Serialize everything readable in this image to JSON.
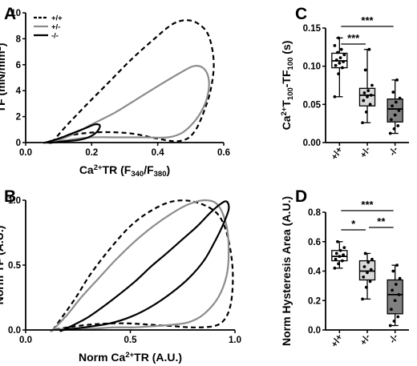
{
  "chart_data": [
    {
      "panel": "A",
      "type": "line",
      "xlabel": "Ca2+TR (F340/F380)",
      "ylabel": "TF (mN/mm2)",
      "xlim": [
        0,
        0.6
      ],
      "ylim": [
        0,
        10
      ],
      "xticks": [
        "0.0",
        "0.2",
        "0.4",
        "0.6"
      ],
      "yticks": [
        "0",
        "2",
        "4",
        "6",
        "8",
        "10"
      ],
      "legend": {
        "placement": "top-left",
        "entries": [
          "+/+",
          "+/-",
          "-/-"
        ]
      },
      "series": [
        {
          "name": "+/+",
          "color": "#000000",
          "dash": "dashed",
          "x": [
            0.08,
            0.12,
            0.18,
            0.25,
            0.32,
            0.39,
            0.45,
            0.5,
            0.54,
            0.56,
            0.57,
            0.56,
            0.54,
            0.52,
            0.5,
            0.48,
            0.45,
            0.4,
            0.32,
            0.24,
            0.17,
            0.11,
            0.08
          ],
          "y": [
            0.0,
            1.2,
            2.8,
            4.6,
            6.4,
            8.0,
            9.2,
            9.4,
            8.8,
            7.8,
            6.0,
            4.0,
            2.4,
            1.2,
            0.5,
            0.2,
            0.1,
            0.3,
            0.7,
            0.8,
            0.7,
            0.4,
            0.0
          ]
        },
        {
          "name": "+/-",
          "color": "#8c8c8c",
          "dash": "solid",
          "x": [
            0.08,
            0.14,
            0.2,
            0.27,
            0.34,
            0.41,
            0.47,
            0.51,
            0.54,
            0.555,
            0.55,
            0.53,
            0.5,
            0.47,
            0.43,
            0.36,
            0.28,
            0.2,
            0.13,
            0.08
          ],
          "y": [
            0.0,
            0.6,
            1.4,
            2.3,
            3.4,
            4.5,
            5.4,
            5.9,
            5.7,
            4.8,
            3.5,
            2.3,
            1.3,
            0.7,
            0.4,
            0.4,
            0.4,
            0.4,
            0.2,
            0.0
          ]
        },
        {
          "name": "-/-",
          "color": "#000000",
          "dash": "solid",
          "x": [
            0.06,
            0.1,
            0.14,
            0.18,
            0.21,
            0.225,
            0.215,
            0.19,
            0.16,
            0.12,
            0.08,
            0.06
          ],
          "y": [
            0.0,
            0.3,
            0.7,
            1.1,
            1.4,
            1.3,
            0.8,
            0.4,
            0.2,
            0.1,
            0.0,
            0.0
          ]
        }
      ]
    },
    {
      "panel": "B",
      "type": "line",
      "xlabel": "Norm Ca2+TR (A.U.)",
      "ylabel": "Norm TF (A.U.)",
      "xlim": [
        0,
        1
      ],
      "ylim": [
        0,
        1
      ],
      "xticks": [
        "0.0",
        "0.5",
        "1.0"
      ],
      "yticks": [
        "0.0",
        "0.5",
        "1.0"
      ],
      "series": [
        {
          "name": "+/+",
          "color": "#000000",
          "dash": "dashed",
          "x": [
            0.13,
            0.17,
            0.24,
            0.31,
            0.4,
            0.5,
            0.6,
            0.7,
            0.8,
            0.9,
            0.95,
            0.98,
            0.99,
            0.98,
            0.95,
            0.9,
            0.8,
            0.7,
            0.6,
            0.5,
            0.4,
            0.3,
            0.2,
            0.13
          ],
          "y": [
            0.0,
            0.09,
            0.25,
            0.43,
            0.62,
            0.8,
            0.92,
            0.99,
            0.99,
            0.92,
            0.8,
            0.6,
            0.4,
            0.2,
            0.08,
            0.03,
            0.02,
            0.03,
            0.04,
            0.05,
            0.05,
            0.04,
            0.02,
            0.0
          ]
        },
        {
          "name": "+/-",
          "color": "#8c8c8c",
          "dash": "solid",
          "x": [
            0.13,
            0.2,
            0.27,
            0.35,
            0.43,
            0.52,
            0.61,
            0.7,
            0.78,
            0.86,
            0.92,
            0.96,
            0.97,
            0.96,
            0.92,
            0.85,
            0.78,
            0.7,
            0.62,
            0.52,
            0.42,
            0.32,
            0.22,
            0.13
          ],
          "y": [
            0.0,
            0.12,
            0.26,
            0.4,
            0.54,
            0.68,
            0.8,
            0.9,
            0.97,
            1.0,
            0.96,
            0.8,
            0.6,
            0.42,
            0.25,
            0.12,
            0.06,
            0.04,
            0.03,
            0.02,
            0.02,
            0.01,
            0.01,
            0.0
          ]
        },
        {
          "name": "-/-",
          "color": "#000000",
          "dash": "solid",
          "x": [
            0.18,
            0.3,
            0.42,
            0.52,
            0.6,
            0.68,
            0.75,
            0.82,
            0.88,
            0.93,
            0.96,
            0.97,
            0.94,
            0.9,
            0.85,
            0.78,
            0.7,
            0.6,
            0.5,
            0.4,
            0.28,
            0.18
          ],
          "y": [
            0.0,
            0.1,
            0.24,
            0.37,
            0.49,
            0.6,
            0.7,
            0.8,
            0.9,
            0.97,
            0.99,
            0.93,
            0.8,
            0.67,
            0.53,
            0.4,
            0.29,
            0.18,
            0.1,
            0.05,
            0.02,
            0.0
          ]
        }
      ]
    },
    {
      "panel": "C",
      "type": "box",
      "ylabel": "Ca2+T100-TF100 (s)",
      "ylim": [
        0,
        0.15
      ],
      "yticks": [
        "0.00",
        "0.05",
        "0.10",
        "0.15"
      ],
      "categories": [
        "+/+",
        "+/-",
        "-/-"
      ],
      "box_colors": [
        "#ffffff",
        "#d9d9d9",
        "#808080"
      ],
      "boxes": [
        {
          "min": 0.06,
          "q1": 0.098,
          "median": 0.107,
          "q3": 0.117,
          "max": 0.137,
          "points": [
            0.06,
            0.09,
            0.098,
            0.101,
            0.104,
            0.106,
            0.108,
            0.111,
            0.115,
            0.118,
            0.122,
            0.127,
            0.137
          ]
        },
        {
          "min": 0.026,
          "q1": 0.048,
          "median": 0.062,
          "q3": 0.071,
          "max": 0.122,
          "points": [
            0.026,
            0.04,
            0.05,
            0.055,
            0.06,
            0.062,
            0.065,
            0.068,
            0.075,
            0.095,
            0.122
          ]
        },
        {
          "min": 0.012,
          "q1": 0.027,
          "median": 0.044,
          "q3": 0.057,
          "max": 0.082,
          "points": [
            0.012,
            0.018,
            0.022,
            0.03,
            0.036,
            0.042,
            0.048,
            0.053,
            0.058,
            0.066,
            0.082
          ]
        }
      ],
      "significance": [
        {
          "groups": [
            0,
            2
          ],
          "label": "***"
        },
        {
          "groups": [
            0,
            1
          ],
          "label": "***"
        }
      ]
    },
    {
      "panel": "D",
      "type": "box",
      "ylabel": "Norm Hysteresis Area (A.U.)",
      "ylim": [
        0,
        0.8
      ],
      "yticks": [
        "0.0",
        "0.2",
        "0.4",
        "0.6",
        "0.8"
      ],
      "categories": [
        "+/+",
        "+/-",
        "-/-"
      ],
      "box_colors": [
        "#ffffff",
        "#d9d9d9",
        "#808080"
      ],
      "boxes": [
        {
          "min": 0.42,
          "q1": 0.47,
          "median": 0.5,
          "q3": 0.54,
          "max": 0.6,
          "points": [
            0.42,
            0.45,
            0.47,
            0.48,
            0.5,
            0.51,
            0.52,
            0.54,
            0.56,
            0.6
          ]
        },
        {
          "min": 0.21,
          "q1": 0.34,
          "median": 0.4,
          "q3": 0.47,
          "max": 0.52,
          "points": [
            0.21,
            0.29,
            0.33,
            0.36,
            0.39,
            0.41,
            0.43,
            0.46,
            0.48,
            0.52
          ]
        },
        {
          "min": 0.03,
          "q1": 0.11,
          "median": 0.24,
          "q3": 0.34,
          "max": 0.44,
          "points": [
            0.03,
            0.06,
            0.09,
            0.14,
            0.2,
            0.24,
            0.27,
            0.31,
            0.35,
            0.4,
            0.44
          ]
        }
      ],
      "significance": [
        {
          "groups": [
            0,
            2
          ],
          "label": "***"
        },
        {
          "groups": [
            0,
            1
          ],
          "label": "*"
        },
        {
          "groups": [
            1,
            2
          ],
          "label": "**"
        }
      ]
    }
  ]
}
